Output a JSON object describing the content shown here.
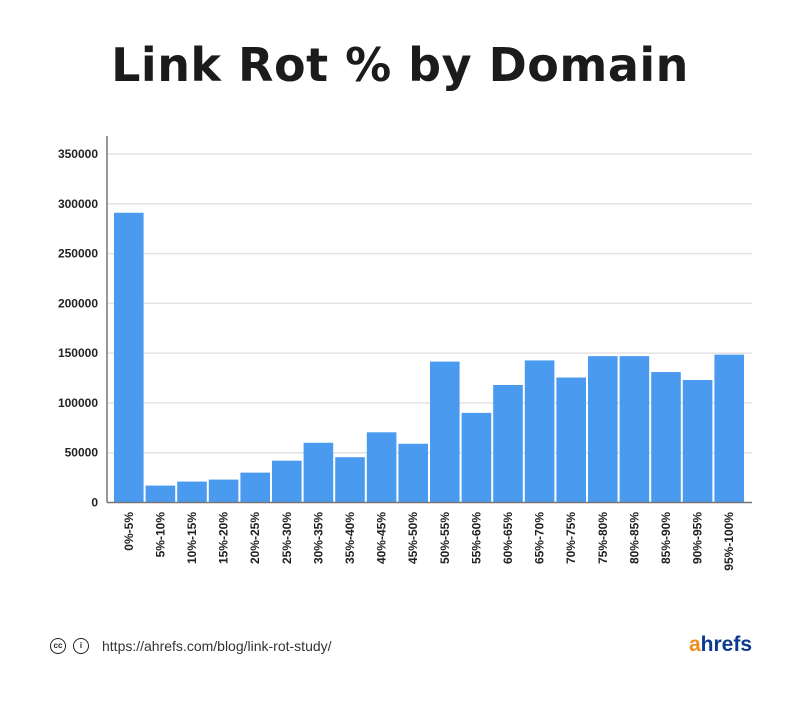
{
  "chart_data": {
    "type": "bar",
    "title": "Link Rot % by Domain",
    "xlabel": "",
    "ylabel": "",
    "ylim": [
      0,
      350000
    ],
    "yticks": [
      0,
      50000,
      100000,
      150000,
      200000,
      250000,
      300000,
      350000
    ],
    "grid": true,
    "color": "#4a9af0",
    "categories": [
      "0%-5%",
      "5%-10%",
      "10%-15%",
      "15%-20%",
      "20%-25%",
      "25%-30%",
      "30%-35%",
      "35%-40%",
      "40%-45%",
      "45%-50%",
      "50%-55%",
      "55%-60%",
      "60%-65%",
      "65%-70%",
      "70%-75%",
      "75%-80%",
      "80%-85%",
      "85%-90%",
      "90%-95%",
      "95%-100%"
    ],
    "values": [
      291000,
      17000,
      21000,
      23000,
      30000,
      42000,
      60000,
      45500,
      70500,
      59000,
      141500,
      90000,
      118000,
      142700,
      125500,
      147000,
      147000,
      131000,
      123000,
      148500
    ]
  },
  "footer": {
    "url": "https://ahrefs.com/blog/link-rot-study/",
    "cc_icon": "creative-commons-icon",
    "by_icon": "attribution-icon",
    "logo_a": "a",
    "logo_rest": "hrefs"
  }
}
